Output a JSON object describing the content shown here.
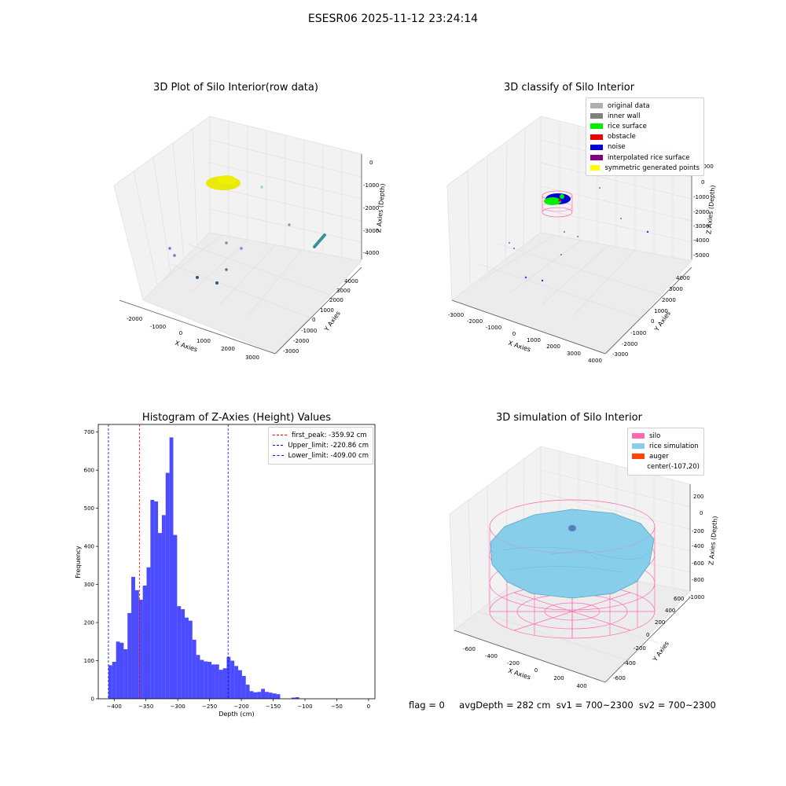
{
  "figure": {
    "suptitle": "ESESR06 2025-11-12 23:24:14"
  },
  "panels": {
    "raw": {
      "title": "3D Plot of Silo Interior(row data)",
      "xlabel": "X Axies",
      "ylabel": "Y Axies",
      "zlabel": "Z Axies (Depth)",
      "x_ticks": [
        "-2000",
        "-1000",
        "0",
        "1000",
        "2000",
        "3000"
      ],
      "y_ticks": [
        "-3000",
        "-2000",
        "-1000",
        "0",
        "1000",
        "2000",
        "3000",
        "4000"
      ],
      "z_ticks": [
        "0",
        "-1000",
        "-2000",
        "-3000",
        "-4000"
      ]
    },
    "classify": {
      "title": "3D classify of Silo Interior",
      "xlabel": "X Axies",
      "ylabel": "Y Axies",
      "zlabel": "Z Axies (Depth)",
      "x_ticks": [
        "-3000",
        "-2000",
        "-1000",
        "0",
        "1000",
        "2000",
        "3000",
        "4000"
      ],
      "y_ticks": [
        "-3000",
        "-2000",
        "-1000",
        "0",
        "1000",
        "2000",
        "3000",
        "4000"
      ],
      "z_ticks": [
        "1000",
        "0",
        "-1000",
        "-2000",
        "-3000",
        "-4000",
        "-5000"
      ],
      "legend": [
        {
          "label": "original data",
          "color": "#b0b0b0"
        },
        {
          "label": "inner wall",
          "color": "#808080"
        },
        {
          "label": "rice surface",
          "color": "#00ee00"
        },
        {
          "label": "obstacle",
          "color": "#ee0000"
        },
        {
          "label": "noise",
          "color": "#0000dd"
        },
        {
          "label": "interpolated rice surface",
          "color": "#800080"
        },
        {
          "label": "symmetric generated points",
          "color": "#ffff00"
        }
      ]
    },
    "simulation": {
      "title": "3D simulation of Silo Interior",
      "xlabel": "X Axies",
      "ylabel": "Y Axies",
      "zlabel": "Z Axies (Depth)",
      "x_ticks": [
        "-600",
        "-400",
        "-200",
        "0",
        "200",
        "400"
      ],
      "y_ticks": [
        "-600",
        "-400",
        "-200",
        "0",
        "200",
        "400",
        "600"
      ],
      "z_ticks": [
        "200",
        "0",
        "-200",
        "-400",
        "-600",
        "-800",
        "-1000"
      ],
      "legend": [
        {
          "label": "silo",
          "color": "#ff69b4"
        },
        {
          "label": "rice simulation",
          "color": "#87ceeb"
        },
        {
          "label": "auger",
          "color": "#ff4500"
        },
        {
          "label": "center(-107,20)",
          "color": ""
        }
      ]
    }
  },
  "status": {
    "flag": "flag = 0",
    "avg": "avgDepth = 282 cm",
    "sv1": "sv1 = 700~2300",
    "sv2": "sv2 = 700~2300"
  },
  "chart_data": [
    {
      "type": "bar",
      "title": "Histogram of Z-Axies (Height) Values",
      "xlabel": "Depth (cm)",
      "ylabel": "Frequency",
      "xlim": [
        -425,
        10
      ],
      "ylim": [
        0,
        720
      ],
      "x_ticks": [
        -400,
        -350,
        -300,
        -250,
        -200,
        -150,
        -100,
        -50,
        0
      ],
      "y_ticks": [
        0,
        100,
        200,
        300,
        400,
        500,
        600,
        700
      ],
      "bin_start": -409,
      "bin_width": 6.0,
      "values": [
        88,
        97,
        150,
        147,
        130,
        225,
        320,
        285,
        260,
        297,
        345,
        522,
        518,
        435,
        482,
        593,
        686,
        430,
        243,
        235,
        213,
        205,
        155,
        115,
        102,
        98,
        97,
        90,
        90,
        76,
        80,
        110,
        100,
        86,
        75,
        60,
        37,
        20,
        17,
        18,
        26,
        18,
        16,
        14,
        12,
        0,
        0,
        0,
        3,
        4
      ],
      "bar_color": "#0000ff",
      "bar_alpha": 0.7,
      "vlines": [
        {
          "label": "first_peak: -359.92 cm",
          "x": -359.92,
          "color": "#ff0000"
        },
        {
          "label": "Upper_limit: -220.86 cm",
          "x": -220.86,
          "color": "#0000ff"
        },
        {
          "label": "Lower_limit: -409.00 cm",
          "x": -409.0,
          "color": "#0000ff"
        }
      ],
      "legend_position": "upper right"
    }
  ]
}
